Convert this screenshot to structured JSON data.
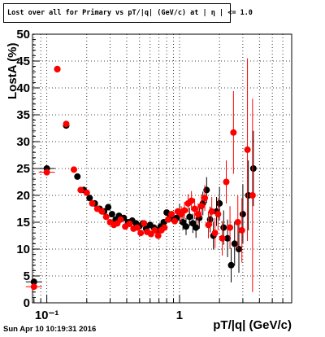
{
  "title": "Lost over all for Primary vs pT/|q| (GeV/c) at | η | <= 1.0",
  "footer": "Sun Apr 10 10:19:31 2016",
  "chart_data": {
    "type": "scatter",
    "title": "Lost over all for Primary vs pT/|q| (GeV/c) at | η | <= 1.0",
    "xlabel": "pT/|q| (GeV/c)",
    "ylabel": "LostA (%)",
    "xscale": "log",
    "xlim": [
      0.078,
      7.0
    ],
    "ylim": [
      0,
      50
    ],
    "grid": true,
    "xticks": [
      {
        "value": 0.1,
        "label": "10⁻¹"
      },
      {
        "value": 1,
        "label": "1"
      }
    ],
    "yticks": [
      0,
      5,
      10,
      15,
      20,
      25,
      30,
      35,
      40,
      45,
      50
    ],
    "colors": {
      "series1": "#000000",
      "series2": "#ff0000"
    },
    "series": [
      {
        "color": "#000000",
        "points": [
          {
            "x": 0.08,
            "y": 3.9,
            "ylo": 3.3,
            "yhi": 4.5
          },
          {
            "x": 0.1,
            "y": 25.0
          },
          {
            "x": 0.12,
            "y": 43.5
          },
          {
            "x": 0.14,
            "y": 33.0
          },
          {
            "x": 0.17,
            "y": 23.5
          },
          {
            "x": 0.19,
            "y": 21.0
          },
          {
            "x": 0.21,
            "y": 19.5
          },
          {
            "x": 0.23,
            "y": 18.5
          },
          {
            "x": 0.25,
            "y": 17.5
          },
          {
            "x": 0.27,
            "y": 17.0
          },
          {
            "x": 0.29,
            "y": 17.8
          },
          {
            "x": 0.31,
            "y": 16.5
          },
          {
            "x": 0.33,
            "y": 15.5
          },
          {
            "x": 0.35,
            "y": 16.2
          },
          {
            "x": 0.38,
            "y": 15.8
          },
          {
            "x": 0.41,
            "y": 15.0
          },
          {
            "x": 0.44,
            "y": 15.3
          },
          {
            "x": 0.47,
            "y": 14.8
          },
          {
            "x": 0.5,
            "y": 14.3
          },
          {
            "x": 0.53,
            "y": 14.8
          },
          {
            "x": 0.56,
            "y": 13.8
          },
          {
            "x": 0.6,
            "y": 14.5
          },
          {
            "x": 0.64,
            "y": 14.0
          },
          {
            "x": 0.68,
            "y": 13.5
          },
          {
            "x": 0.72,
            "y": 14.2
          },
          {
            "x": 0.76,
            "y": 15.0
          },
          {
            "x": 0.8,
            "y": 16.8
          },
          {
            "x": 0.85,
            "y": 16.0
          },
          {
            "x": 0.9,
            "y": 15.5
          },
          {
            "x": 0.95,
            "y": 15.8
          },
          {
            "x": 1.0,
            "y": 16.8,
            "ylo": 15.2,
            "yhi": 18.4
          },
          {
            "x": 1.06,
            "y": 15.0,
            "ylo": 13.5,
            "yhi": 16.5
          },
          {
            "x": 1.12,
            "y": 14.2,
            "ylo": 12.6,
            "yhi": 15.8
          },
          {
            "x": 1.19,
            "y": 16.0,
            "ylo": 14.3,
            "yhi": 17.7
          },
          {
            "x": 1.26,
            "y": 14.8,
            "ylo": 13.0,
            "yhi": 16.6
          },
          {
            "x": 1.33,
            "y": 14.0,
            "ylo": 12.1,
            "yhi": 15.9
          },
          {
            "x": 1.41,
            "y": 15.8,
            "ylo": 13.8,
            "yhi": 17.8
          },
          {
            "x": 1.5,
            "y": 18.5,
            "ylo": 16.3,
            "yhi": 20.7
          },
          {
            "x": 1.6,
            "y": 21.0,
            "ylo": 18.6,
            "yhi": 23.4
          },
          {
            "x": 1.7,
            "y": 15.5,
            "ylo": 13.1,
            "yhi": 17.9
          },
          {
            "x": 1.8,
            "y": 12.5,
            "ylo": 9.9,
            "yhi": 15.1
          },
          {
            "x": 1.9,
            "y": 17.0,
            "ylo": 14.3,
            "yhi": 19.7
          },
          {
            "x": 2.0,
            "y": 18.5,
            "ylo": 15.4,
            "yhi": 21.6
          },
          {
            "x": 2.15,
            "y": 14.0,
            "ylo": 10.8,
            "yhi": 17.2
          },
          {
            "x": 2.3,
            "y": 12.0,
            "ylo": 8.5,
            "yhi": 15.5
          },
          {
            "x": 2.45,
            "y": 7.0,
            "ylo": 3.8,
            "yhi": 10.2
          },
          {
            "x": 2.6,
            "y": 11.0,
            "ylo": 6.9,
            "yhi": 15.1
          },
          {
            "x": 2.8,
            "y": 10.0,
            "ylo": 5.6,
            "yhi": 14.4
          },
          {
            "x": 3.0,
            "y": 16.5,
            "ylo": 11.0,
            "yhi": 22.0
          },
          {
            "x": 3.3,
            "y": 20.0,
            "ylo": 13.5,
            "yhi": 26.5
          },
          {
            "x": 3.6,
            "y": 25.0,
            "ylo": 18.0,
            "yhi": 32.0
          }
        ]
      },
      {
        "color": "#ff0000",
        "points": [
          {
            "x": 0.08,
            "y": 3.0,
            "ylo": 2.4,
            "yhi": 3.6
          },
          {
            "x": 0.1,
            "y": 24.3
          },
          {
            "x": 0.12,
            "y": 43.5
          },
          {
            "x": 0.14,
            "y": 33.3
          },
          {
            "x": 0.16,
            "y": 24.8
          },
          {
            "x": 0.18,
            "y": 21.0
          },
          {
            "x": 0.2,
            "y": 20.5
          },
          {
            "x": 0.22,
            "y": 18.5
          },
          {
            "x": 0.24,
            "y": 17.5
          },
          {
            "x": 0.26,
            "y": 17.0
          },
          {
            "x": 0.28,
            "y": 16.0
          },
          {
            "x": 0.3,
            "y": 15.0
          },
          {
            "x": 0.32,
            "y": 14.5
          },
          {
            "x": 0.34,
            "y": 14.8
          },
          {
            "x": 0.36,
            "y": 15.5
          },
          {
            "x": 0.39,
            "y": 14.2
          },
          {
            "x": 0.42,
            "y": 14.7
          },
          {
            "x": 0.45,
            "y": 13.8
          },
          {
            "x": 0.48,
            "y": 14.0
          },
          {
            "x": 0.51,
            "y": 13.0
          },
          {
            "x": 0.54,
            "y": 14.8
          },
          {
            "x": 0.57,
            "y": 13.2
          },
          {
            "x": 0.61,
            "y": 12.8
          },
          {
            "x": 0.65,
            "y": 13.5
          },
          {
            "x": 0.69,
            "y": 12.5
          },
          {
            "x": 0.73,
            "y": 13.5
          },
          {
            "x": 0.77,
            "y": 14.0
          },
          {
            "x": 0.82,
            "y": 15.5
          },
          {
            "x": 0.87,
            "y": 16.5
          },
          {
            "x": 0.92,
            "y": 15.2
          },
          {
            "x": 0.97,
            "y": 17.0
          },
          {
            "x": 1.03,
            "y": 16.5,
            "ylo": 15.0,
            "yhi": 18.0
          },
          {
            "x": 1.09,
            "y": 17.2,
            "ylo": 15.6,
            "yhi": 18.8
          },
          {
            "x": 1.16,
            "y": 18.5,
            "ylo": 16.8,
            "yhi": 20.2
          },
          {
            "x": 1.23,
            "y": 19.0,
            "ylo": 17.2,
            "yhi": 20.8
          },
          {
            "x": 1.3,
            "y": 17.5,
            "ylo": 15.6,
            "yhi": 19.4
          },
          {
            "x": 1.38,
            "y": 16.5,
            "ylo": 14.5,
            "yhi": 18.5
          },
          {
            "x": 1.46,
            "y": 18.0,
            "ylo": 15.8,
            "yhi": 20.2
          },
          {
            "x": 1.55,
            "y": 19.5,
            "ylo": 17.1,
            "yhi": 21.9
          },
          {
            "x": 1.65,
            "y": 14.5,
            "ylo": 12.0,
            "yhi": 17.0
          },
          {
            "x": 1.75,
            "y": 17.0,
            "ylo": 14.3,
            "yhi": 19.7
          },
          {
            "x": 1.85,
            "y": 13.0,
            "ylo": 10.2,
            "yhi": 15.8
          },
          {
            "x": 1.95,
            "y": 16.5,
            "ylo": 13.5,
            "yhi": 19.5
          },
          {
            "x": 2.1,
            "y": 12.0,
            "ylo": 8.8,
            "yhi": 15.2
          },
          {
            "x": 2.25,
            "y": 22.5,
            "ylo": 18.5,
            "yhi": 26.5
          },
          {
            "x": 2.4,
            "y": 14.0,
            "ylo": 10.0,
            "yhi": 18.0
          },
          {
            "x": 2.55,
            "y": 31.7,
            "ylo": 24.0,
            "yhi": 39.4
          },
          {
            "x": 2.75,
            "y": 15.0,
            "ylo": 10.0,
            "yhi": 20.0
          },
          {
            "x": 2.95,
            "y": 13.5,
            "ylo": 7.5,
            "yhi": 19.5
          },
          {
            "x": 3.25,
            "y": 28.5,
            "ylo": 11.5,
            "yhi": 45.5
          },
          {
            "x": 3.55,
            "y": 20.0,
            "ylo": 2.0,
            "yhi": 38.0
          }
        ]
      }
    ]
  }
}
